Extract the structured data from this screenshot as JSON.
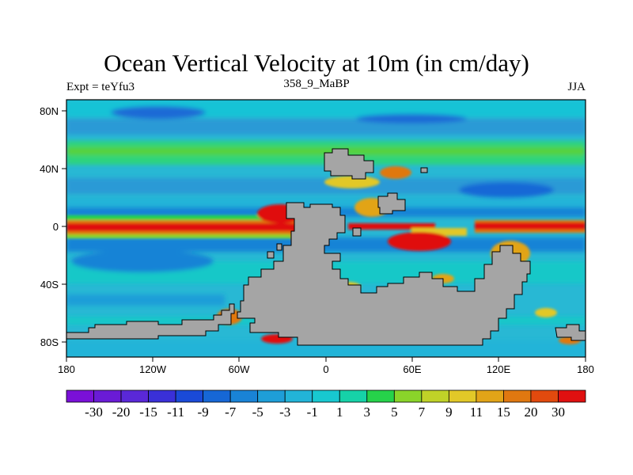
{
  "title": "Ocean Vertical Velocity at 10m (in cm/day)",
  "left_label": "Expt = teYfu3",
  "center_label": "358_9_MaBP",
  "right_label": "JJA",
  "x_ticks": [
    "180",
    "120W",
    "60W",
    "0",
    "60E",
    "120E",
    "180"
  ],
  "y_ticks": [
    "80N",
    "40N",
    "0",
    "40S",
    "80S"
  ],
  "colorbar": {
    "levels": [
      "-30",
      "-20",
      "-15",
      "-11",
      "-9",
      "-7",
      "-5",
      "-3",
      "-1",
      "1",
      "3",
      "5",
      "7",
      "9",
      "11",
      "15",
      "20",
      "30"
    ],
    "colors": [
      "#7a10d8",
      "#6a1bd6",
      "#5a28d8",
      "#3a30d8",
      "#1a4ad8",
      "#1667d6",
      "#1983d6",
      "#1e9ed8",
      "#22b4d8",
      "#18c8d0",
      "#16d2a8",
      "#26d24a",
      "#8ad42a",
      "#c0d228",
      "#e2c828",
      "#e2a418",
      "#e07810",
      "#e24a0e",
      "#e01010"
    ]
  },
  "colors": {
    "land": "#a5a5a5",
    "ocean_base": "#28b8d4",
    "upwelling": "#e01010"
  }
}
